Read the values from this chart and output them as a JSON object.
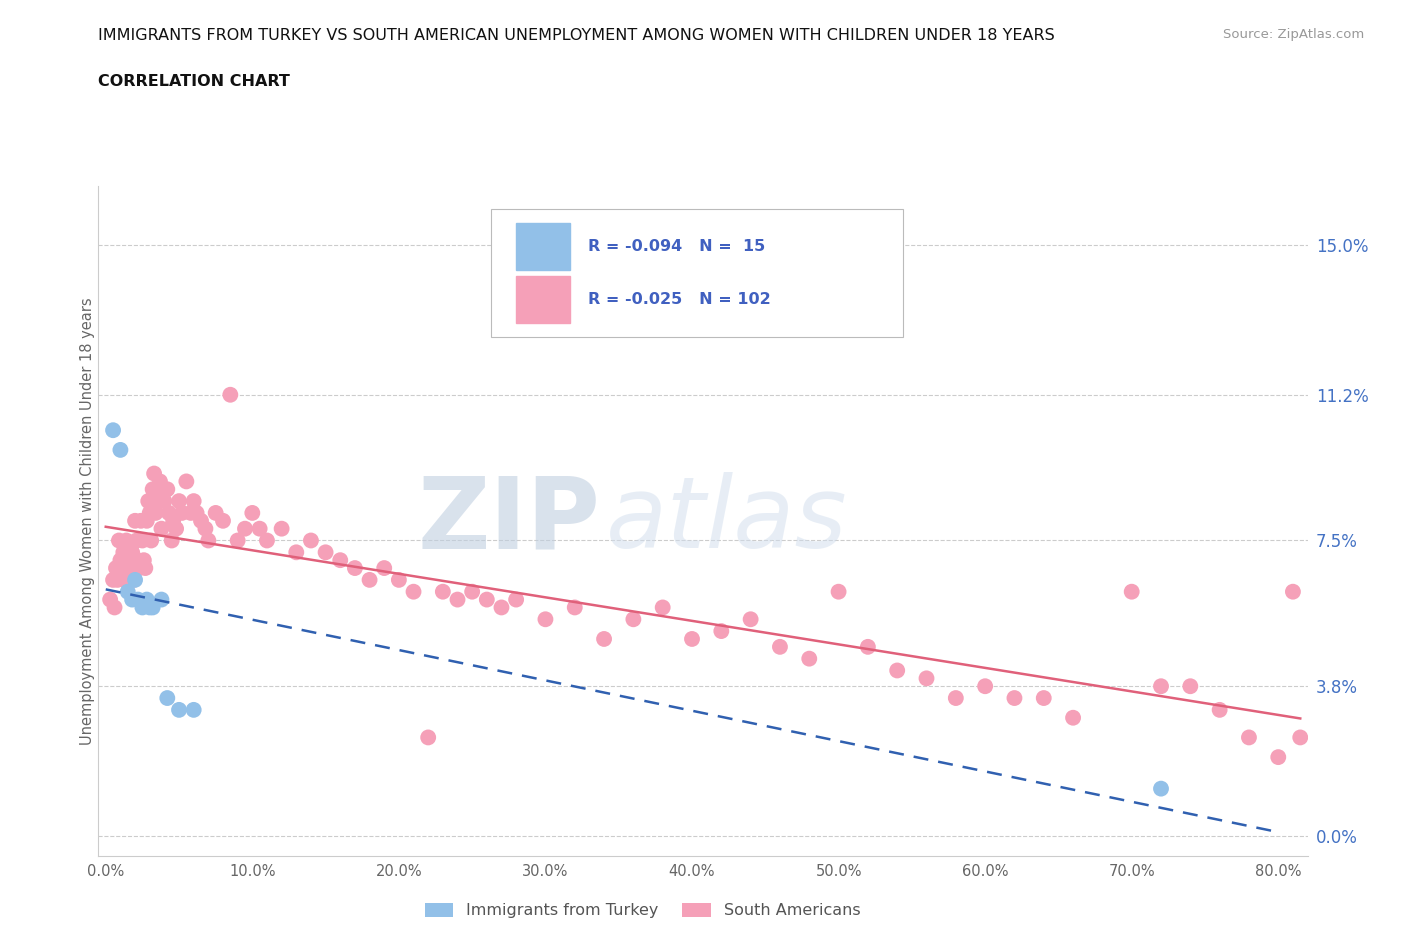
{
  "title_line1": "IMMIGRANTS FROM TURKEY VS SOUTH AMERICAN UNEMPLOYMENT AMONG WOMEN WITH CHILDREN UNDER 18 YEARS",
  "title_line2": "CORRELATION CHART",
  "source_text": "Source: ZipAtlas.com",
  "ylabel": "Unemployment Among Women with Children Under 18 years",
  "xlim": [
    -0.005,
    0.82
  ],
  "ylim": [
    -0.005,
    0.165
  ],
  "yticks": [
    0.0,
    0.038,
    0.075,
    0.112,
    0.15
  ],
  "ytick_labels": [
    "0.0%",
    "3.8%",
    "7.5%",
    "11.2%",
    "15.0%"
  ],
  "xticks": [
    0.0,
    0.1,
    0.2,
    0.3,
    0.4,
    0.5,
    0.6,
    0.7,
    0.8
  ],
  "xtick_labels": [
    "0.0%",
    "10.0%",
    "20.0%",
    "30.0%",
    "40.0%",
    "50.0%",
    "60.0%",
    "70.0%",
    "80.0%"
  ],
  "turkey_color": "#92c0e8",
  "sa_color": "#f5a0b8",
  "turkey_line_color": "#3060b0",
  "sa_line_color": "#e0607a",
  "legend_text_color": "#4060c0",
  "R_turkey": -0.094,
  "N_turkey": 15,
  "R_sa": -0.025,
  "N_sa": 102,
  "watermark_zip": "ZIP",
  "watermark_atlas": "atlas",
  "turkey_x": [
    0.005,
    0.01,
    0.015,
    0.018,
    0.02,
    0.022,
    0.025,
    0.028,
    0.03,
    0.032,
    0.038,
    0.042,
    0.05,
    0.06,
    0.72
  ],
  "turkey_y": [
    0.103,
    0.098,
    0.062,
    0.06,
    0.065,
    0.06,
    0.058,
    0.06,
    0.058,
    0.058,
    0.06,
    0.035,
    0.032,
    0.032,
    0.012
  ],
  "sa_x": [
    0.003,
    0.005,
    0.006,
    0.007,
    0.008,
    0.009,
    0.01,
    0.011,
    0.012,
    0.013,
    0.014,
    0.015,
    0.016,
    0.017,
    0.018,
    0.019,
    0.02,
    0.021,
    0.022,
    0.023,
    0.024,
    0.025,
    0.026,
    0.027,
    0.028,
    0.029,
    0.03,
    0.031,
    0.032,
    0.033,
    0.034,
    0.035,
    0.036,
    0.037,
    0.038,
    0.04,
    0.042,
    0.043,
    0.045,
    0.046,
    0.048,
    0.05,
    0.052,
    0.055,
    0.058,
    0.06,
    0.062,
    0.065,
    0.068,
    0.07,
    0.075,
    0.08,
    0.085,
    0.09,
    0.095,
    0.1,
    0.105,
    0.11,
    0.12,
    0.13,
    0.14,
    0.15,
    0.16,
    0.17,
    0.18,
    0.19,
    0.2,
    0.21,
    0.22,
    0.23,
    0.24,
    0.25,
    0.26,
    0.27,
    0.28,
    0.3,
    0.32,
    0.34,
    0.36,
    0.38,
    0.4,
    0.42,
    0.44,
    0.46,
    0.48,
    0.5,
    0.52,
    0.54,
    0.56,
    0.58,
    0.6,
    0.62,
    0.64,
    0.66,
    0.7,
    0.72,
    0.74,
    0.76,
    0.78,
    0.8,
    0.81,
    0.815
  ],
  "sa_y": [
    0.06,
    0.065,
    0.058,
    0.068,
    0.065,
    0.075,
    0.07,
    0.068,
    0.072,
    0.065,
    0.075,
    0.07,
    0.068,
    0.065,
    0.072,
    0.065,
    0.08,
    0.075,
    0.07,
    0.068,
    0.08,
    0.075,
    0.07,
    0.068,
    0.08,
    0.085,
    0.082,
    0.075,
    0.088,
    0.092,
    0.082,
    0.088,
    0.085,
    0.09,
    0.078,
    0.085,
    0.088,
    0.082,
    0.075,
    0.08,
    0.078,
    0.085,
    0.082,
    0.09,
    0.082,
    0.085,
    0.082,
    0.08,
    0.078,
    0.075,
    0.082,
    0.08,
    0.112,
    0.075,
    0.078,
    0.082,
    0.078,
    0.075,
    0.078,
    0.072,
    0.075,
    0.072,
    0.07,
    0.068,
    0.065,
    0.068,
    0.065,
    0.062,
    0.025,
    0.062,
    0.06,
    0.062,
    0.06,
    0.058,
    0.06,
    0.055,
    0.058,
    0.05,
    0.055,
    0.058,
    0.05,
    0.052,
    0.055,
    0.048,
    0.045,
    0.062,
    0.048,
    0.042,
    0.04,
    0.035,
    0.038,
    0.035,
    0.035,
    0.03,
    0.062,
    0.038,
    0.038,
    0.032,
    0.025,
    0.02,
    0.062,
    0.025
  ]
}
